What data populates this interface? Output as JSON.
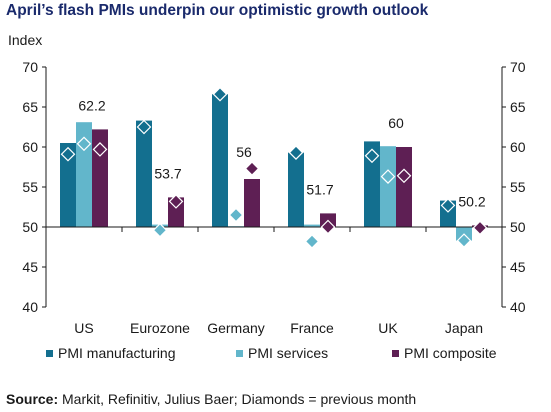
{
  "title": "April’s flash PMIs underpin our optimistic growth outlook",
  "source": {
    "label": "Source:",
    "text": " Markit, Refinitiv, Julius Baer; Diamonds = previous month"
  },
  "colors": {
    "manufacturing": "#136f8f",
    "services": "#62b6cb",
    "composite": "#5e1f54",
    "diamond_outline": "#ffffff",
    "axis": "#1a1a1a"
  },
  "chart_data": {
    "type": "bar",
    "ylabel": "Index",
    "ylim": [
      40,
      70
    ],
    "yticks": [
      40,
      45,
      50,
      55,
      60,
      65,
      70
    ],
    "baseline": 50,
    "grid": false,
    "legend_position": "bottom",
    "categories": [
      "US",
      "Eurozone",
      "Germany",
      "France",
      "UK",
      "Japan"
    ],
    "series": [
      {
        "name": "PMI manufacturing",
        "key": "manufacturing",
        "values": [
          60.5,
          63.3,
          66.6,
          59.3,
          60.7,
          53.3
        ],
        "previous": [
          59.1,
          62.5,
          66.6,
          59.3,
          58.9,
          52.7
        ]
      },
      {
        "name": "PMI services",
        "key": "services",
        "values": [
          63.1,
          50.3,
          50.1,
          50.3,
          60.1,
          48.3
        ],
        "previous": [
          60.4,
          49.6,
          51.5,
          48.2,
          56.3,
          48.3
        ]
      },
      {
        "name": "PMI composite",
        "key": "composite",
        "values": [
          62.2,
          53.7,
          56.0,
          51.7,
          60.0,
          50.2
        ],
        "previous": [
          59.7,
          53.2,
          57.3,
          50.0,
          56.4,
          49.9
        ]
      }
    ],
    "data_labels": [
      "62.2",
      "53.7",
      "56",
      "51.7",
      "60",
      "50.2"
    ]
  }
}
